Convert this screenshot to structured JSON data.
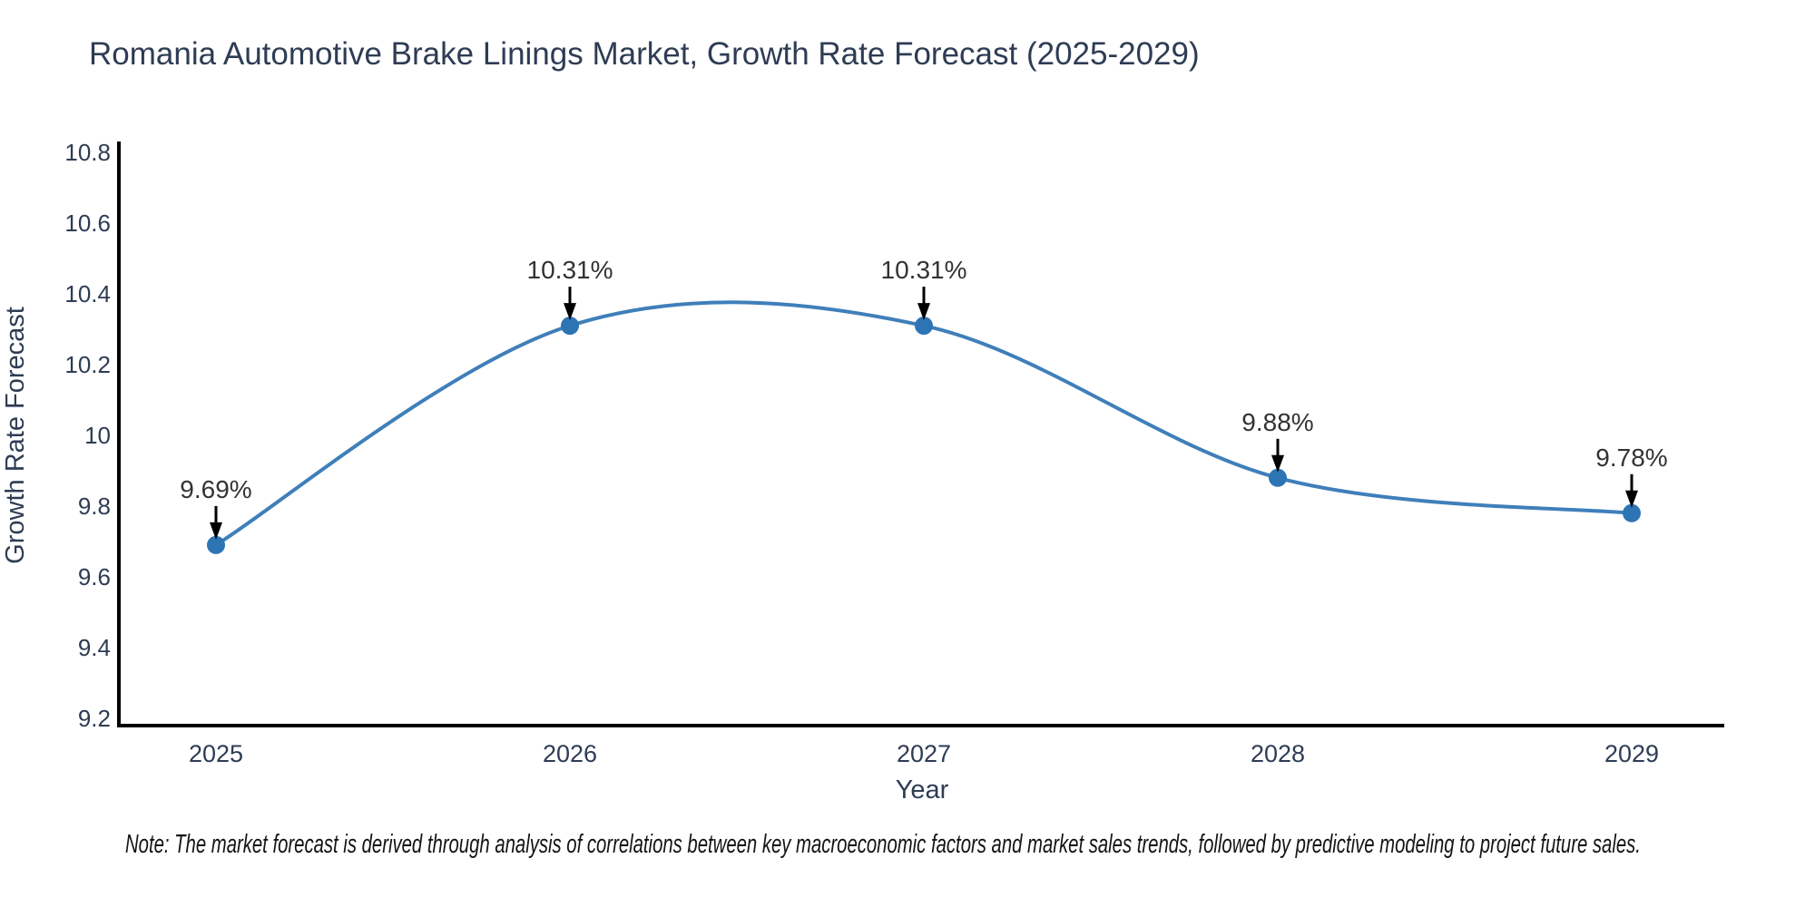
{
  "note": "Note: The market forecast is derived through analysis of correlations between key macroeconomic factors and market sales trends, followed by predictive modeling to project future sales.",
  "chart_data": {
    "type": "line",
    "title": "Romania Automotive Brake Linings Market, Growth Rate Forecast (2025-2029)",
    "xlabel": "Year",
    "ylabel": "Growth Rate Forecast",
    "x": [
      "2025",
      "2026",
      "2027",
      "2028",
      "2029"
    ],
    "y": [
      9.69,
      10.31,
      10.31,
      9.88,
      9.78
    ],
    "point_labels": [
      "9.69%",
      "10.31%",
      "10.31%",
      "9.88%",
      "9.78%"
    ],
    "ylim": [
      9.2,
      10.8
    ],
    "yticks": [
      9.2,
      9.4,
      9.6,
      9.8,
      10,
      10.2,
      10.4,
      10.6,
      10.8
    ],
    "grid": false,
    "legend": false,
    "smooth": true,
    "annotation_style": "down-arrow",
    "colors": {
      "line": "#3f7fba",
      "marker": "#2d74b4",
      "annotation_text": "#333333",
      "annotation_arrow": "#000000",
      "axis": "#000000",
      "tick_label": "#2e3c54",
      "axis_label": "#2e3c54",
      "title": "#2e3c54",
      "note": "#141414"
    }
  }
}
